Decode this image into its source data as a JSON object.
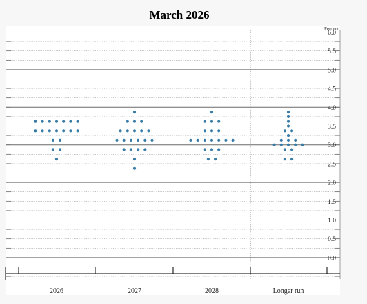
{
  "chart_data": {
    "type": "scatter",
    "title": "March 2026",
    "unit_label": "Percent",
    "ylim": [
      -0.5,
      6.0
    ],
    "yticks": [
      "6.0",
      "5.5",
      "5.0",
      "4.5",
      "4.0",
      "3.5",
      "3.0",
      "2.5",
      "2.0",
      "1.5",
      "1.0",
      "0.5",
      "0.0"
    ],
    "ytick_values": [
      6.0,
      5.5,
      5.0,
      4.5,
      4.0,
      3.5,
      3.0,
      2.5,
      2.0,
      1.5,
      1.0,
      0.5,
      0.0
    ],
    "minor_step": 0.25,
    "categories": [
      "2026",
      "2027",
      "2028",
      "Longer run"
    ],
    "grid": true,
    "dot_color": "#3a7ca8",
    "dots": [
      [
        {
          "y": 3.625,
          "n": 7
        },
        {
          "y": 3.375,
          "n": 7
        },
        {
          "y": 3.125,
          "n": 2
        },
        {
          "y": 2.875,
          "n": 2
        },
        {
          "y": 2.625,
          "n": 1
        }
      ],
      [
        {
          "y": 3.875,
          "n": 1
        },
        {
          "y": 3.625,
          "n": 3
        },
        {
          "y": 3.375,
          "n": 5
        },
        {
          "y": 3.125,
          "n": 6
        },
        {
          "y": 2.875,
          "n": 4
        },
        {
          "y": 2.625,
          "n": 1
        },
        {
          "y": 2.375,
          "n": 1
        }
      ],
      [
        {
          "y": 3.875,
          "n": 1
        },
        {
          "y": 3.625,
          "n": 3
        },
        {
          "y": 3.375,
          "n": 3
        },
        {
          "y": 3.125,
          "n": 7
        },
        {
          "y": 2.875,
          "n": 3
        },
        {
          "y": 2.625,
          "n": 2
        }
      ],
      [
        {
          "y": 3.875,
          "n": 1
        },
        {
          "y": 3.75,
          "n": 1
        },
        {
          "y": 3.625,
          "n": 1
        },
        {
          "y": 3.5,
          "n": 1
        },
        {
          "y": 3.375,
          "n": 2
        },
        {
          "y": 3.25,
          "n": 1
        },
        {
          "y": 3.125,
          "n": 3
        },
        {
          "y": 3.0,
          "n": 5
        },
        {
          "y": 2.875,
          "n": 2
        },
        {
          "y": 2.625,
          "n": 2
        }
      ]
    ]
  }
}
